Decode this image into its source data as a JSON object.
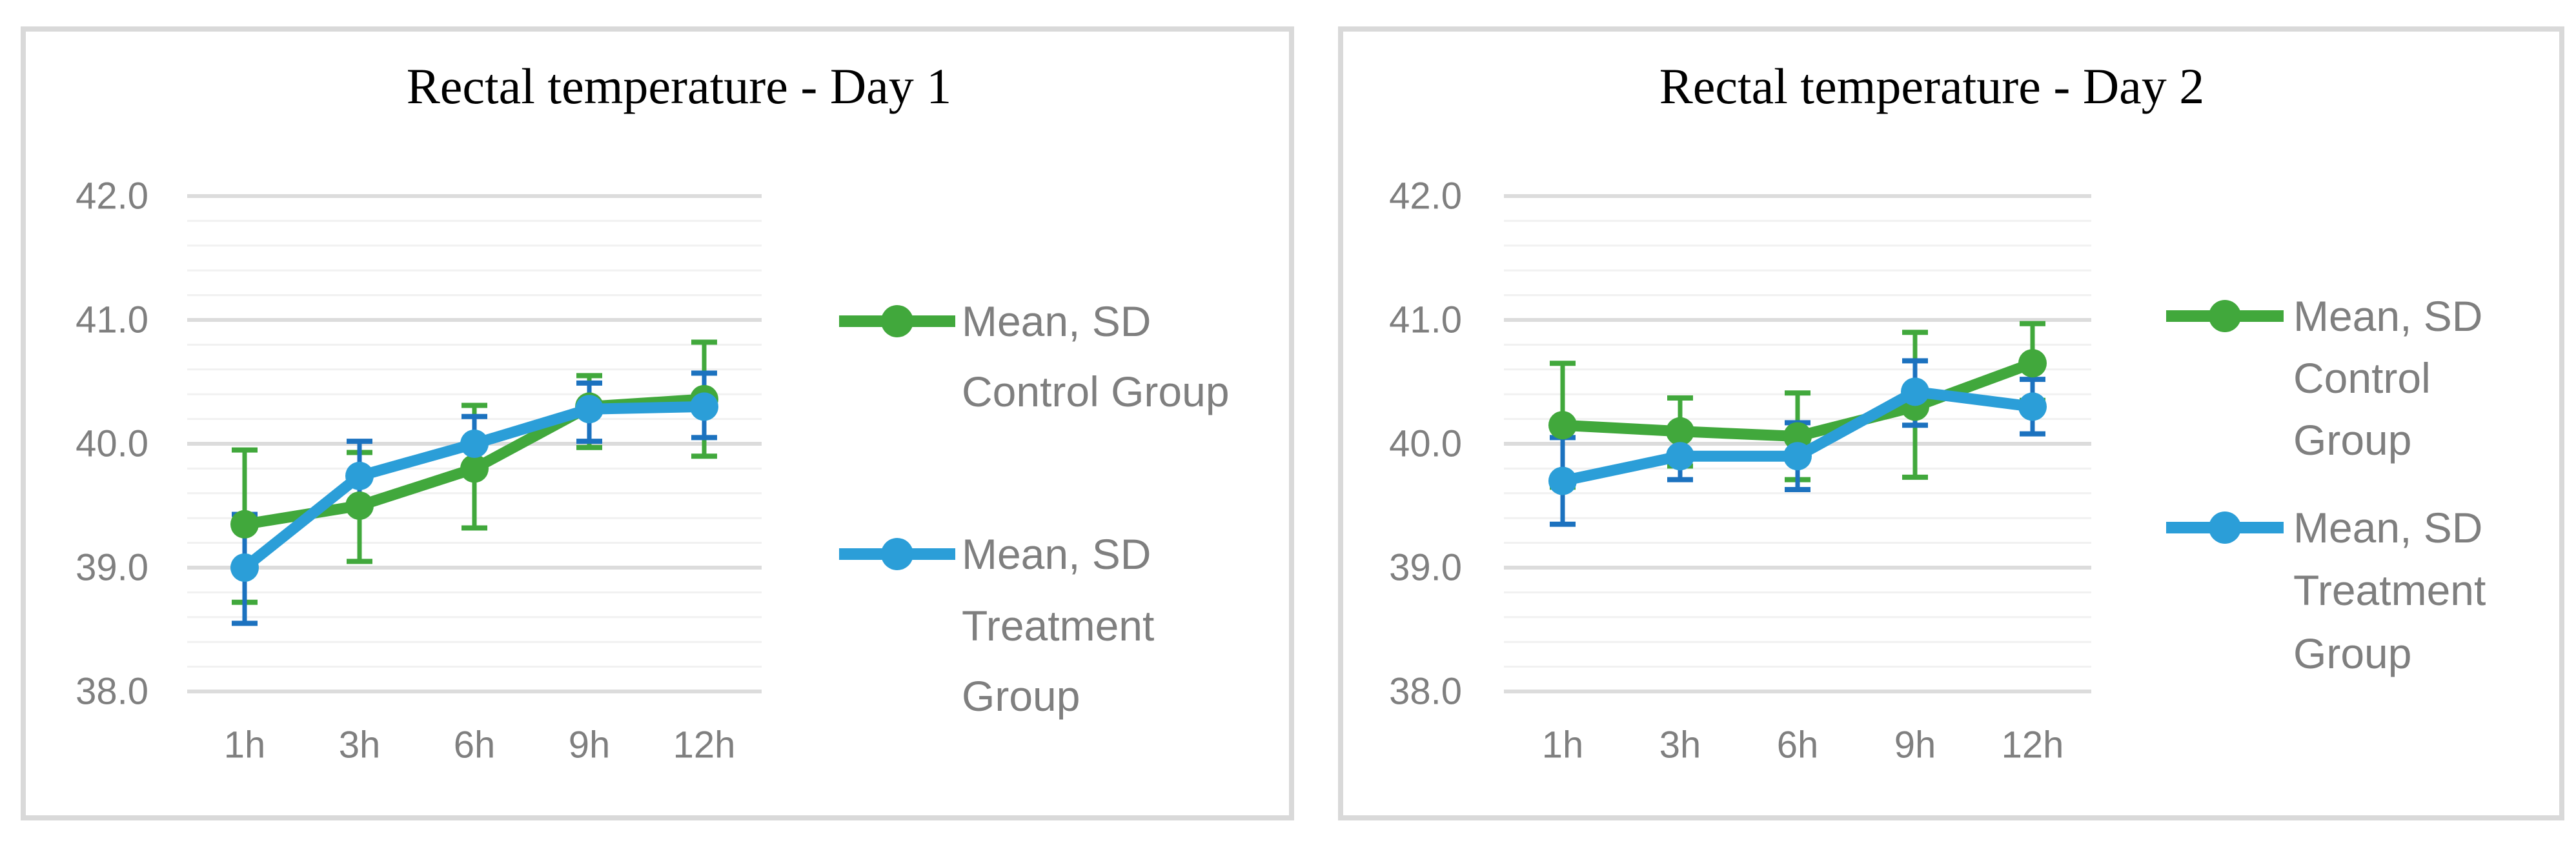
{
  "page": {
    "background": "#FFFFFF"
  },
  "colors": {
    "control_series": "#41A83C",
    "treatment_series": "#2B9ED8",
    "treatment_error_bar": "#1C72BF",
    "control_error_bar": "#41A83C",
    "grid_major": "#DCDCDC",
    "grid_minor": "#F1F1F1",
    "axis_text": "#7F7F7F",
    "legend_text": "#7F7F7F",
    "title_text": "#000000",
    "panel_border": "#D9D9D9"
  },
  "chart_data": [
    {
      "type": "line",
      "title": "Rectal temperature - Day 1",
      "categories": [
        "1h",
        "3h",
        "6h",
        "9h",
        "12h"
      ],
      "xlabel": "",
      "ylabel": "",
      "grid": true,
      "legend_position": "right",
      "y_axis": {
        "min": 38.0,
        "max": 42.0,
        "major_step": 1.0,
        "minor_step": 0.2,
        "tick_labels": [
          "42.0",
          "41.0",
          "40.0",
          "39.0",
          "38.0"
        ],
        "tick_values": [
          42.0,
          41.0,
          40.0,
          39.0,
          38.0
        ]
      },
      "series": [
        {
          "name": "Mean, SD Control Group",
          "legend_lines": [
            "Mean, SD",
            "Control Group"
          ],
          "color_key": "control_series",
          "error_color_key": "control_error_bar",
          "mean": [
            39.35,
            39.5,
            39.8,
            40.3,
            40.36
          ],
          "sd_upper": [
            39.95,
            39.93,
            40.31,
            40.55,
            40.82
          ],
          "sd_lower": [
            38.72,
            39.05,
            39.32,
            39.97,
            39.9
          ]
        },
        {
          "name": "Mean, SD Treatment Group",
          "legend_lines": [
            "Mean, SD",
            "Treatment",
            "Group"
          ],
          "color_key": "treatment_series",
          "error_color_key": "treatment_error_bar",
          "mean": [
            39.0,
            39.74,
            40.0,
            40.28,
            40.3
          ],
          "sd_upper": [
            39.43,
            40.02,
            40.22,
            40.49,
            40.57
          ],
          "sd_lower": [
            38.55,
            39.47,
            39.78,
            40.02,
            40.05
          ]
        }
      ]
    },
    {
      "type": "line",
      "title": "Rectal temperature - Day 2",
      "categories": [
        "1h",
        "3h",
        "6h",
        "9h",
        "12h"
      ],
      "xlabel": "",
      "ylabel": "",
      "grid": true,
      "legend_position": "right",
      "y_axis": {
        "min": 38.0,
        "max": 42.0,
        "major_step": 1.0,
        "minor_step": 0.2,
        "tick_labels": [
          "42.0",
          "41.0",
          "40.0",
          "39.0",
          "38.0"
        ],
        "tick_values": [
          42.0,
          41.0,
          40.0,
          39.0,
          38.0
        ]
      },
      "series": [
        {
          "name": "Mean, SD Control Group",
          "legend_lines": [
            "Mean, SD",
            "Control",
            "Group"
          ],
          "color_key": "control_series",
          "error_color_key": "control_error_bar",
          "mean": [
            40.15,
            40.1,
            40.06,
            40.3,
            40.65
          ],
          "sd_upper": [
            40.65,
            40.37,
            40.41,
            40.9,
            40.97
          ],
          "sd_lower": [
            39.65,
            39.82,
            39.71,
            39.73,
            40.35
          ]
        },
        {
          "name": "Mean, SD Treatment Group",
          "legend_lines": [
            "Mean, SD",
            "Treatment",
            "Group"
          ],
          "color_key": "treatment_series",
          "error_color_key": "treatment_error_bar",
          "mean": [
            39.7,
            39.9,
            39.9,
            40.42,
            40.3
          ],
          "sd_upper": [
            40.05,
            40.1,
            40.17,
            40.67,
            40.52
          ],
          "sd_lower": [
            39.35,
            39.71,
            39.63,
            40.15,
            40.08
          ]
        }
      ]
    }
  ]
}
